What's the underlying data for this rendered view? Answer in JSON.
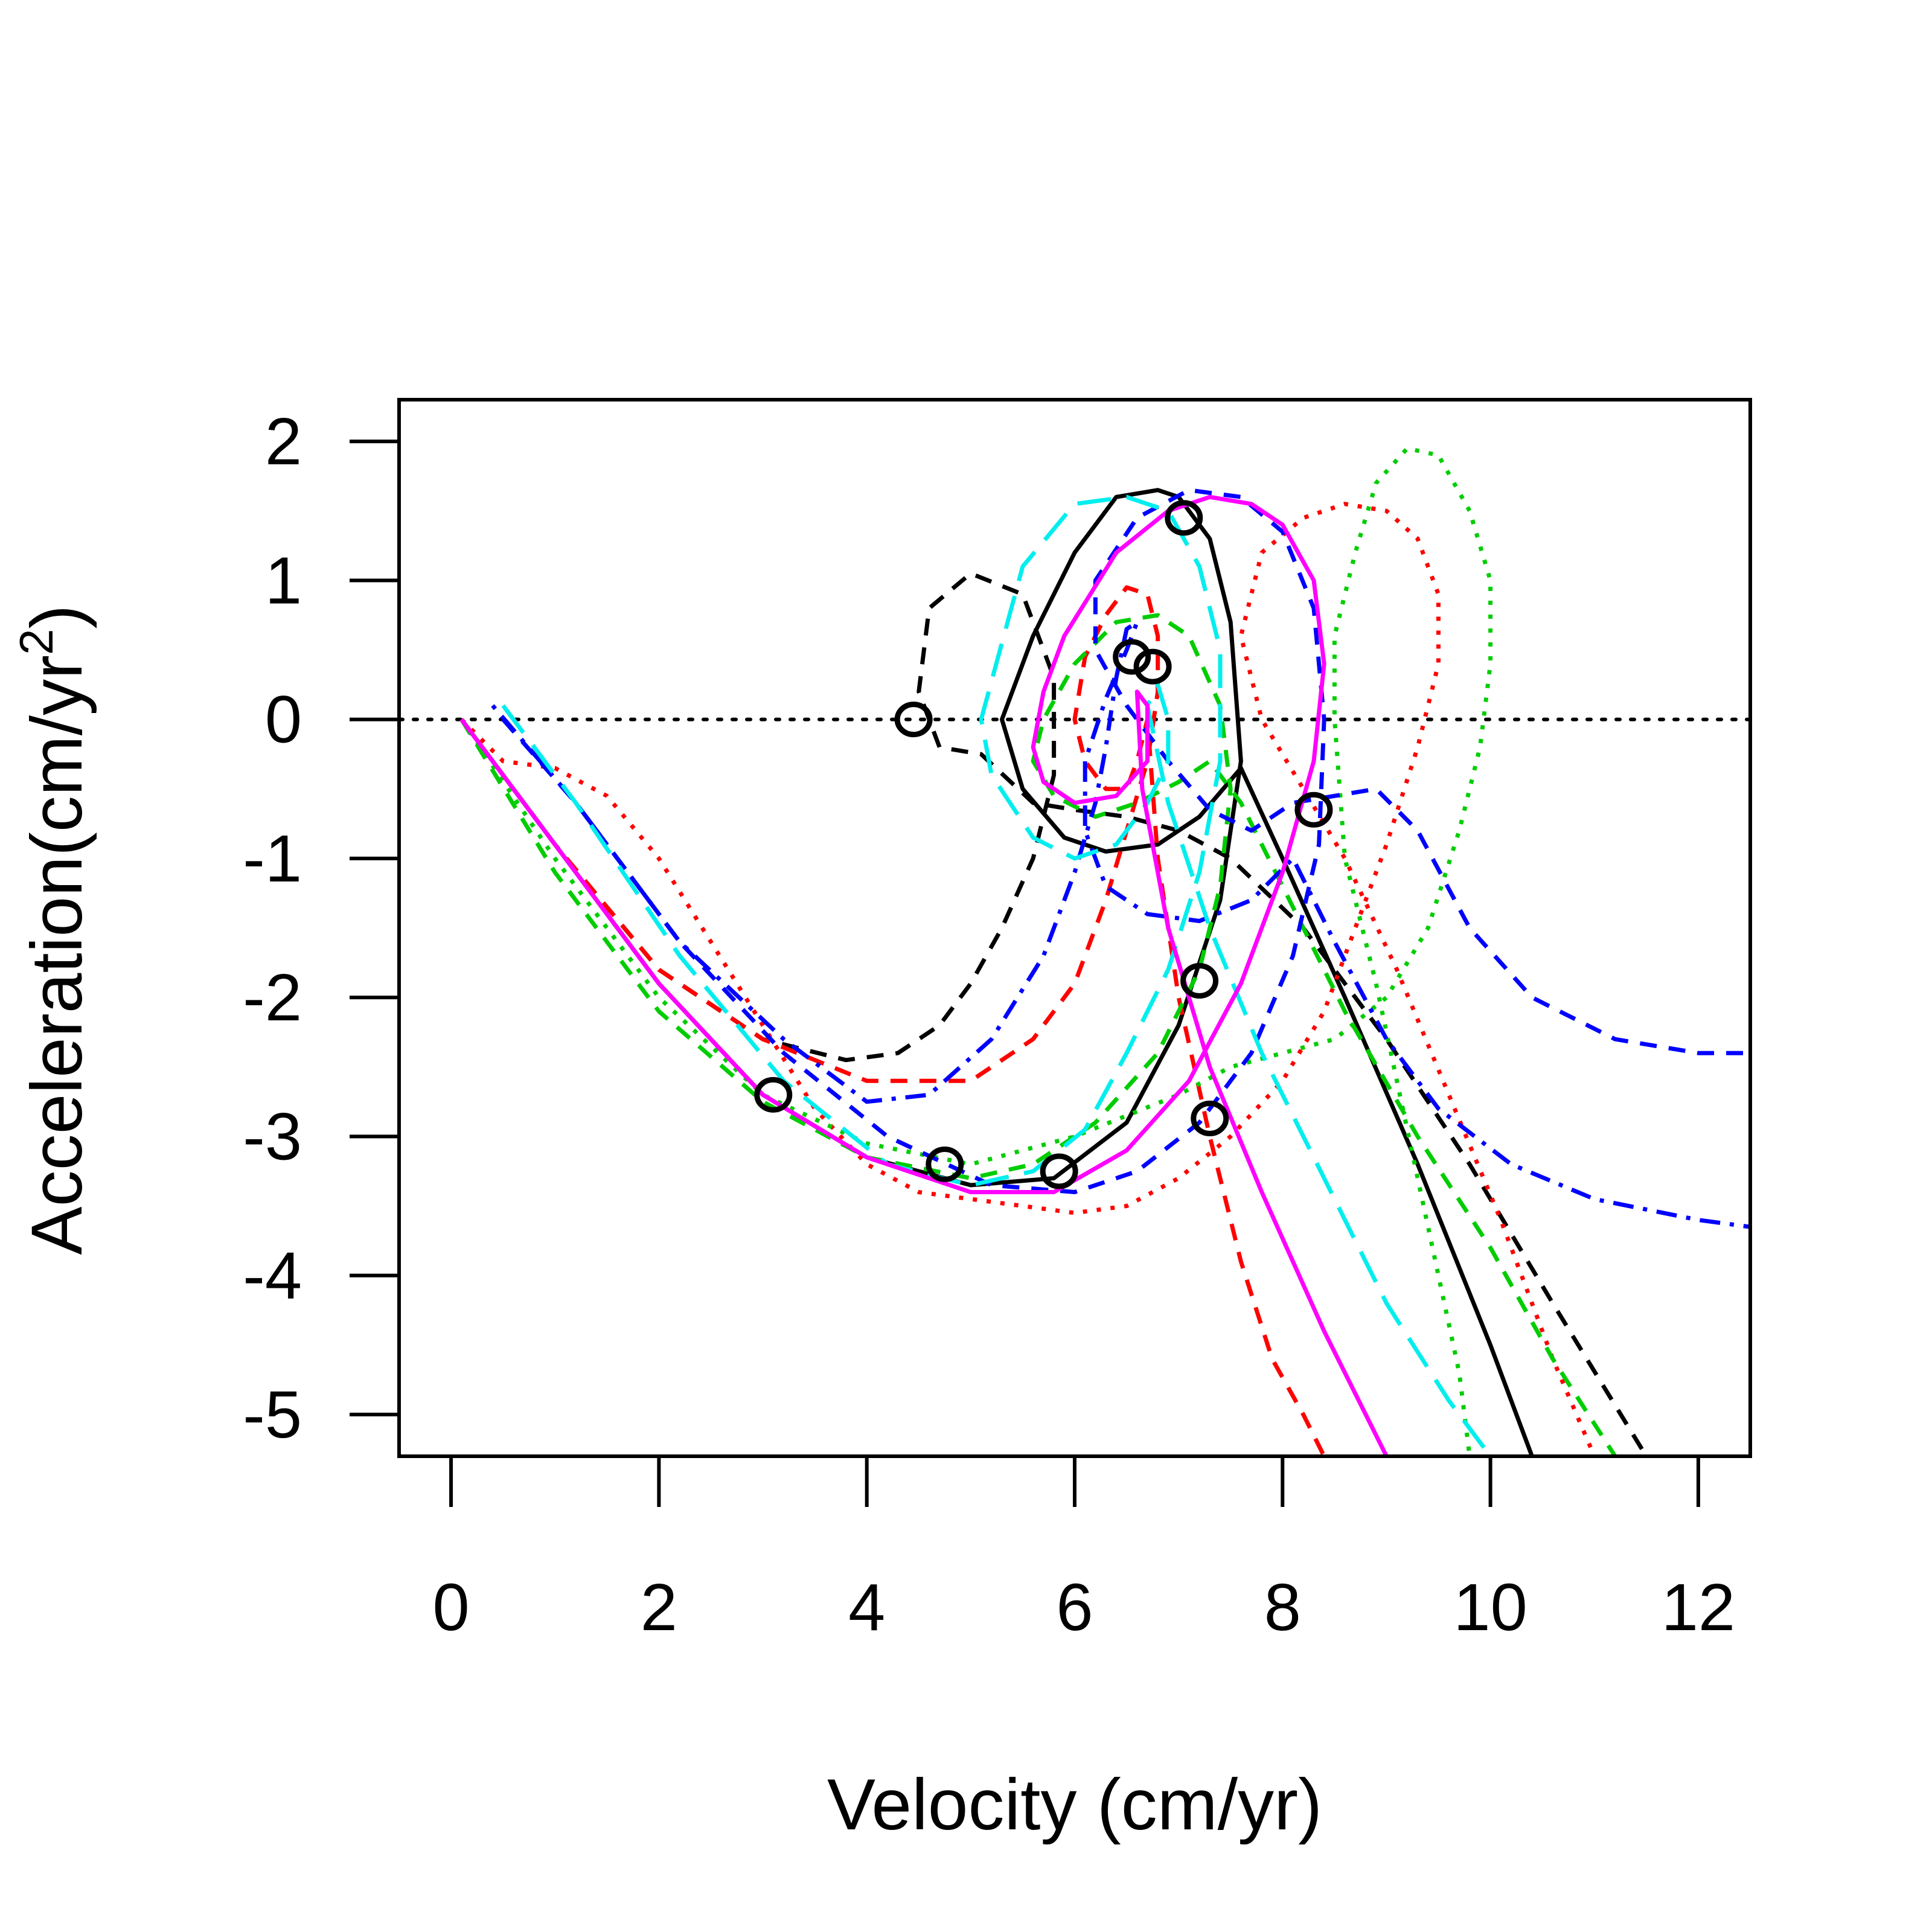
{
  "chart_data": {
    "type": "line",
    "title": "",
    "xlabel": "Velocity (cm/yr)",
    "ylabel": "Acceleration(cm/yr",
    "ylabel_sup": "2",
    "ylabel_end": ")",
    "xlim": [
      -0.5,
      12.5
    ],
    "ylim": [
      -5.3,
      2.3
    ],
    "xticks": [
      0,
      2,
      4,
      6,
      8,
      10,
      12
    ],
    "yticks": [
      2,
      1,
      0,
      -1,
      -2,
      -3,
      -4,
      -5
    ],
    "xtick_labels": [
      "0",
      "2",
      "4",
      "6",
      "8",
      "10",
      "12"
    ],
    "ytick_labels": [
      "2",
      "1",
      "0",
      "-1",
      "-2",
      "-3",
      "-4",
      "-5"
    ],
    "grid": false,
    "reference_line": {
      "y": 0,
      "style": "dotted",
      "color": "#000000"
    },
    "marker_symbol": "O",
    "series": [
      {
        "color": "#000000",
        "style": "solid",
        "x": [
          0.1,
          1.0,
          2.0,
          3.0,
          4.0,
          5.0,
          5.8,
          6.5,
          7.0,
          7.4,
          7.6,
          7.5,
          7.3,
          7.0,
          6.8,
          6.4,
          6.0,
          5.6,
          5.3,
          5.5,
          5.9,
          6.3,
          6.8,
          7.2,
          7.6,
          8.0,
          8.6,
          9.3,
          10.0,
          10.4
        ],
        "y": [
          0.0,
          -0.9,
          -1.9,
          -2.7,
          -3.15,
          -3.35,
          -3.3,
          -2.9,
          -2.2,
          -1.3,
          -0.3,
          0.7,
          1.3,
          1.6,
          1.65,
          1.6,
          1.2,
          0.6,
          0.0,
          -0.5,
          -0.85,
          -0.95,
          -0.9,
          -0.7,
          -0.35,
          -1.0,
          -2.0,
          -3.2,
          -4.5,
          -5.3
        ]
      },
      {
        "color": "#000000",
        "style": "dashed",
        "x": [
          0.1,
          1.0,
          2.0,
          3.0,
          3.8,
          4.3,
          4.7,
          5.0,
          5.3,
          5.6,
          5.8,
          5.8,
          5.5,
          5.0,
          4.6,
          4.5,
          4.7,
          5.1,
          5.6,
          6.0,
          6.5,
          7.0,
          7.5,
          8.2,
          9.0,
          9.8,
          10.6,
          11.5
        ],
        "y": [
          0.0,
          -0.9,
          -1.8,
          -2.3,
          -2.45,
          -2.4,
          -2.2,
          -1.9,
          -1.5,
          -1.0,
          -0.4,
          0.3,
          0.9,
          1.05,
          0.8,
          0.2,
          -0.2,
          -0.25,
          -0.6,
          -0.65,
          -0.7,
          -0.8,
          -1.0,
          -1.5,
          -2.3,
          -3.2,
          -4.2,
          -5.3
        ]
      },
      {
        "color": "#FF0000",
        "style": "dotted",
        "x": [
          0.1,
          0.5,
          1.0,
          1.5,
          2.0,
          2.5,
          3.0,
          3.5,
          4.0,
          4.5,
          5.0,
          5.5,
          6.0,
          6.5,
          7.0,
          7.5,
          8.0,
          8.4,
          8.7,
          9.0,
          9.3,
          9.5,
          9.5,
          9.3,
          9.0,
          8.6,
          8.2,
          7.8,
          7.6,
          7.8,
          8.2,
          8.6,
          9.1,
          9.6,
          10.1,
          10.6,
          11.0
        ],
        "y": [
          0.0,
          -0.3,
          -0.35,
          -0.55,
          -1.0,
          -1.6,
          -2.2,
          -2.8,
          -3.2,
          -3.4,
          -3.45,
          -3.5,
          -3.55,
          -3.5,
          -3.3,
          -3.0,
          -2.6,
          -2.1,
          -1.5,
          -0.9,
          -0.2,
          0.4,
          0.9,
          1.3,
          1.5,
          1.55,
          1.45,
          1.2,
          0.6,
          0.0,
          -0.5,
          -1.0,
          -1.8,
          -2.7,
          -3.6,
          -4.6,
          -5.3
        ]
      },
      {
        "color": "#FF0000",
        "style": "dashed",
        "x": [
          0.1,
          1.0,
          2.0,
          3.0,
          4.0,
          5.0,
          5.6,
          6.0,
          6.3,
          6.5,
          6.7,
          6.8,
          6.8,
          6.7,
          6.5,
          6.3,
          6.1,
          6.0,
          6.1,
          6.3,
          6.5,
          6.6,
          6.7,
          6.8,
          7.0,
          7.3,
          7.6,
          7.9,
          8.2,
          8.4
        ],
        "y": [
          0.0,
          -0.9,
          -1.8,
          -2.3,
          -2.6,
          -2.6,
          -2.3,
          -1.9,
          -1.3,
          -0.8,
          -0.3,
          0.2,
          0.6,
          0.9,
          0.95,
          0.75,
          0.45,
          0.0,
          -0.3,
          -0.5,
          -0.5,
          -0.3,
          0.0,
          -1.0,
          -2.0,
          -3.0,
          -3.9,
          -4.6,
          -5.0,
          -5.3
        ]
      },
      {
        "color": "#00CD00",
        "style": "dotted",
        "x": [
          0.1,
          1.0,
          2.0,
          3.0,
          4.0,
          5.0,
          6.0,
          7.0,
          7.5,
          8.0,
          8.5,
          9.0,
          9.4,
          9.7,
          9.9,
          10.0,
          10.0,
          9.8,
          9.5,
          9.2,
          8.9,
          8.7,
          8.5,
          8.5,
          8.6,
          8.9,
          9.1,
          9.3,
          9.5,
          9.7,
          9.8
        ],
        "y": [
          0.0,
          -1.0,
          -2.0,
          -2.7,
          -3.05,
          -3.2,
          -3.0,
          -2.7,
          -2.5,
          -2.4,
          -2.3,
          -2.0,
          -1.5,
          -0.8,
          -0.2,
          0.4,
          1.0,
          1.5,
          1.9,
          1.95,
          1.7,
          1.2,
          0.6,
          0.0,
          -1.0,
          -1.9,
          -2.6,
          -3.3,
          -4.0,
          -4.7,
          -5.3
        ]
      },
      {
        "color": "#00CD00",
        "style": "dashed",
        "x": [
          0.1,
          1.0,
          2.0,
          3.0,
          4.0,
          5.0,
          5.6,
          6.2,
          6.8,
          7.2,
          7.4,
          7.5,
          7.4,
          7.1,
          6.8,
          6.4,
          6.0,
          5.7,
          5.6,
          5.8,
          6.2,
          6.6,
          7.0,
          7.3,
          7.6,
          8.0,
          8.6,
          9.3,
          10.0,
          10.6,
          11.2
        ],
        "y": [
          0.0,
          -1.1,
          -2.1,
          -2.75,
          -3.15,
          -3.3,
          -3.2,
          -2.9,
          -2.4,
          -1.8,
          -1.2,
          -0.5,
          0.1,
          0.6,
          0.75,
          0.7,
          0.4,
          0.0,
          -0.3,
          -0.55,
          -0.7,
          -0.6,
          -0.45,
          -0.3,
          -0.6,
          -1.2,
          -2.1,
          -3.0,
          -3.8,
          -4.6,
          -5.3
        ]
      },
      {
        "color": "#0000FF",
        "style": "dashed",
        "x": [
          0.5,
          1.2,
          2.2,
          3.2,
          4.2,
          5.2,
          6.0,
          6.6,
          7.2,
          7.7,
          8.1,
          8.35,
          8.4,
          8.3,
          8.0,
          7.6,
          7.1,
          6.6,
          6.2,
          6.2,
          6.5,
          6.9,
          7.3,
          7.7,
          8.1,
          8.5,
          8.9,
          9.3,
          9.8,
          10.4,
          11.2,
          12.0,
          12.5
        ],
        "y": [
          0.0,
          -0.6,
          -1.6,
          -2.4,
          -3.0,
          -3.35,
          -3.4,
          -3.25,
          -2.9,
          -2.4,
          -1.7,
          -0.9,
          0.0,
          0.8,
          1.35,
          1.6,
          1.65,
          1.45,
          1.0,
          0.5,
          0.1,
          -0.3,
          -0.65,
          -0.8,
          -0.6,
          -0.55,
          -0.5,
          -0.8,
          -1.5,
          -2.0,
          -2.3,
          -2.4,
          -2.4
        ]
      },
      {
        "color": "#0000FF",
        "style": "dotdash",
        "x": [
          0.4,
          1.2,
          2.2,
          3.2,
          4.0,
          4.6,
          5.2,
          5.7,
          6.0,
          6.2,
          6.3,
          6.4,
          6.5,
          6.6,
          6.5,
          6.3,
          6.1,
          6.1,
          6.3,
          6.7,
          7.2,
          7.7,
          8.1,
          8.5,
          9.0,
          9.5,
          10.2,
          11.0,
          12.0,
          12.5
        ],
        "y": [
          0.1,
          -0.6,
          -1.6,
          -2.3,
          -2.75,
          -2.7,
          -2.3,
          -1.7,
          -1.1,
          -0.6,
          -0.2,
          0.3,
          0.65,
          0.7,
          0.5,
          0.15,
          -0.3,
          -0.8,
          -1.2,
          -1.4,
          -1.45,
          -1.3,
          -1.0,
          -1.6,
          -2.3,
          -2.8,
          -3.2,
          -3.45,
          -3.6,
          -3.65
        ]
      },
      {
        "color": "#00EEEE",
        "style": "longdash",
        "x": [
          0.5,
          1.2,
          2.2,
          3.2,
          4.2,
          5.0,
          5.6,
          6.1,
          6.5,
          6.9,
          7.2,
          7.4,
          7.4,
          7.2,
          6.9,
          6.5,
          6.0,
          5.5,
          5.1,
          5.2,
          5.6,
          6.0,
          6.4,
          6.7,
          6.9,
          6.9,
          6.8,
          6.7,
          6.9,
          7.3,
          7.8,
          8.4,
          9.0,
          9.6,
          10.0
        ],
        "y": [
          0.1,
          -0.6,
          -1.7,
          -2.6,
          -3.2,
          -3.35,
          -3.25,
          -2.95,
          -2.4,
          -1.8,
          -1.1,
          -0.3,
          0.5,
          1.1,
          1.5,
          1.6,
          1.55,
          1.1,
          0.0,
          -0.4,
          -0.85,
          -1.0,
          -0.9,
          -0.6,
          -0.3,
          0.0,
          0.25,
          0.1,
          -0.6,
          -1.5,
          -2.4,
          -3.3,
          -4.2,
          -4.9,
          -5.3
        ]
      },
      {
        "color": "#FF00FF",
        "style": "solid",
        "x": [
          0.1,
          1.0,
          2.0,
          3.0,
          4.0,
          5.0,
          5.8,
          6.5,
          7.1,
          7.6,
          8.0,
          8.3,
          8.4,
          8.3,
          8.0,
          7.7,
          7.3,
          6.9,
          6.4,
          5.9,
          5.7,
          5.6,
          5.7,
          6.0,
          6.4,
          6.7,
          6.7,
          6.6,
          6.65,
          6.9,
          7.3,
          7.8,
          8.4,
          9.0
        ],
        "y": [
          0.0,
          -0.9,
          -1.9,
          -2.7,
          -3.15,
          -3.4,
          -3.4,
          -3.1,
          -2.6,
          -1.9,
          -1.1,
          -0.3,
          0.4,
          1.0,
          1.4,
          1.55,
          1.6,
          1.5,
          1.2,
          0.6,
          0.2,
          -0.2,
          -0.45,
          -0.6,
          -0.55,
          -0.3,
          0.1,
          0.2,
          -0.5,
          -1.5,
          -2.5,
          -3.4,
          -4.4,
          -5.3
        ]
      }
    ],
    "markers": [
      {
        "x": 3.1,
        "y": -2.7
      },
      {
        "x": 4.75,
        "y": -3.2
      },
      {
        "x": 5.85,
        "y": -3.25
      },
      {
        "x": 7.05,
        "y": 1.45
      },
      {
        "x": 6.55,
        "y": 0.45
      },
      {
        "x": 6.75,
        "y": 0.38
      },
      {
        "x": 4.45,
        "y": 0.0
      },
      {
        "x": 8.3,
        "y": -0.65
      },
      {
        "x": 7.2,
        "y": -1.88
      },
      {
        "x": 7.3,
        "y": -2.87
      }
    ]
  }
}
